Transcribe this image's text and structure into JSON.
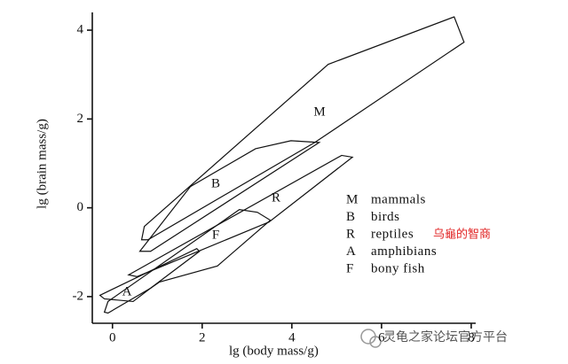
{
  "chart_data": {
    "type": "region",
    "xlabel": "lg (body mass/g)",
    "ylabel": "lg (brain mass/g)",
    "xlim": [
      -0.45,
      8.1
    ],
    "ylim": [
      -2.6,
      4.4
    ],
    "xticks": [
      0,
      2,
      4,
      6,
      8
    ],
    "yticks": [
      -2,
      0,
      2,
      4
    ],
    "color": "#111111",
    "series": [
      {
        "key": "M",
        "name": "mammals",
        "x": [
          0.65,
          0.71,
          4.81,
          7.62,
          7.84,
          4.51,
          0.79
        ],
        "y": [
          -0.72,
          -0.42,
          3.23,
          4.3,
          3.73,
          1.47,
          -0.72
        ]
      },
      {
        "key": "B",
        "name": "birds",
        "x": [
          0.61,
          1.74,
          3.19,
          3.98,
          4.61,
          0.85
        ],
        "y": [
          -0.98,
          0.48,
          1.33,
          1.51,
          1.47,
          -0.98
        ]
      },
      {
        "key": "R",
        "name": "reptiles",
        "x": [
          0.36,
          5.11,
          5.35,
          3.49,
          0.55
        ],
        "y": [
          -1.51,
          1.18,
          1.14,
          -0.32,
          -1.55
        ]
      },
      {
        "key": "A",
        "name": "amphibians",
        "x": [
          -0.28,
          1.88,
          1.94,
          0.85,
          0.46,
          -0.18
        ],
        "y": [
          -1.97,
          -0.92,
          -0.98,
          -1.81,
          -2.11,
          -2.05
        ]
      },
      {
        "key": "F",
        "name": "bony fish",
        "x": [
          -0.18,
          -0.1,
          2.83,
          3.23,
          3.52,
          2.34,
          1.05,
          0.85,
          -0.1
        ],
        "y": [
          -2.35,
          -2.11,
          -0.04,
          -0.1,
          -0.28,
          -1.31,
          -1.67,
          -1.81,
          -2.37
        ]
      }
    ],
    "annotation": "乌龜的智商"
  },
  "watermark": "灵龟之家论坛官方平台"
}
